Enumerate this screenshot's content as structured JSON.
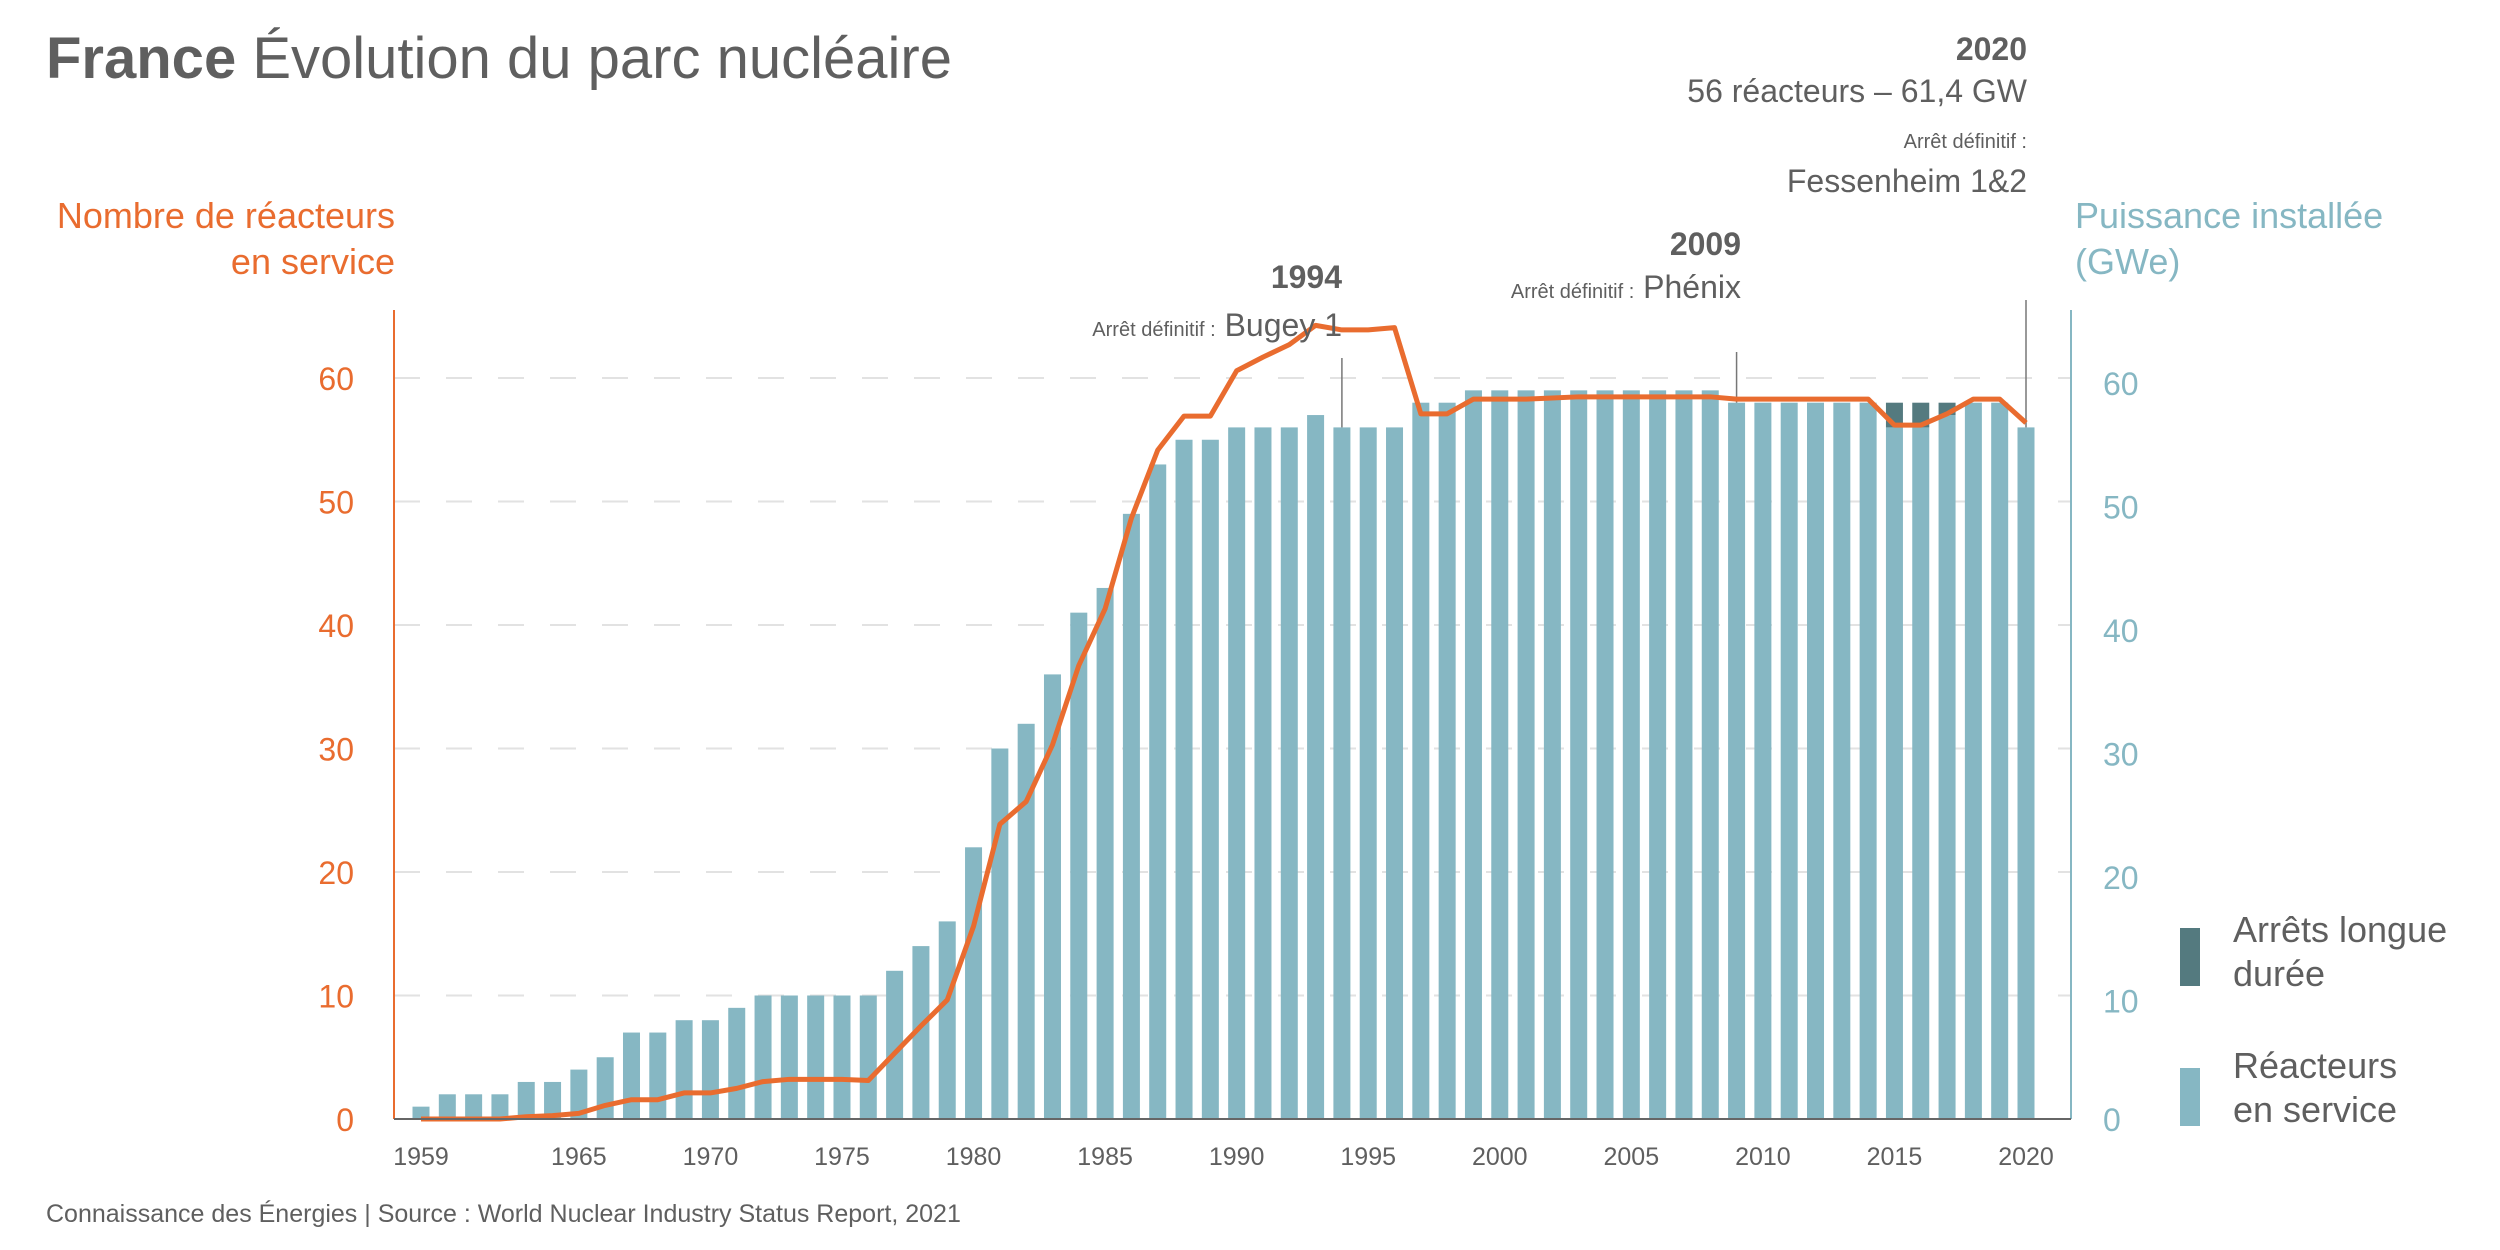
{
  "title": {
    "bold": "France",
    "rest": "Évolution du parc nucléaire"
  },
  "footer": "Connaissance des Énergies | Source : World Nuclear Industry Status Report, 2021",
  "colors": {
    "bars": "#86b7c3",
    "stopped": "#547a7f",
    "line": "#e96c2f",
    "left_axis": "#e96c2f",
    "right_axis": "#86b7c3",
    "text": "#5f5f5f"
  },
  "annotations": [
    {
      "year": "1994",
      "prefix": "Arrêt définitif :",
      "name": "Bugey 1"
    },
    {
      "year": "2009",
      "prefix": "Arrêt définitif :",
      "name": "Phénix"
    },
    {
      "year": "2020",
      "subtitle": "56 réacteurs – 61,4 GW",
      "prefix": "Arrêt définitif :",
      "name": "Fessenheim 1&2"
    }
  ],
  "legend": {
    "stopped": [
      "Arrêts longue",
      "durée"
    ],
    "bars": [
      "Réacteurs",
      "en service"
    ]
  },
  "chart_data": {
    "type": "bar",
    "title": "France Évolution du parc nucléaire",
    "ylabel_left": [
      "Nombre de réacteurs",
      "en service"
    ],
    "ylabel_right": [
      "Puissance installée",
      "(GWe)"
    ],
    "ylim_left": [
      0,
      65
    ],
    "ylim_right": [
      0,
      65
    ],
    "yticks_left": [
      0,
      10,
      20,
      30,
      40,
      50,
      60
    ],
    "yticks_right": [
      0,
      10,
      20,
      30,
      40,
      50,
      60
    ],
    "xticks": [
      1959,
      1965,
      1970,
      1975,
      1980,
      1985,
      1990,
      1995,
      2000,
      2005,
      2010,
      2015,
      2020
    ],
    "grid": "horizontal dashed",
    "legend_position": "bottom-right",
    "x": [
      1959,
      1960,
      1961,
      1962,
      1963,
      1964,
      1965,
      1966,
      1967,
      1968,
      1969,
      1970,
      1971,
      1972,
      1973,
      1974,
      1975,
      1976,
      1977,
      1978,
      1979,
      1980,
      1981,
      1982,
      1983,
      1984,
      1985,
      1986,
      1987,
      1988,
      1989,
      1990,
      1991,
      1992,
      1993,
      1994,
      1995,
      1996,
      1997,
      1998,
      1999,
      2000,
      2001,
      2002,
      2003,
      2004,
      2005,
      2006,
      2007,
      2008,
      2009,
      2010,
      2011,
      2012,
      2013,
      2014,
      2015,
      2016,
      2017,
      2018,
      2019,
      2020
    ],
    "series": [
      {
        "name": "Réacteurs en service",
        "type": "bar",
        "axis": "left",
        "values": [
          1,
          2,
          2,
          2,
          3,
          3,
          4,
          5,
          7,
          7,
          8,
          8,
          9,
          10,
          10,
          10,
          10,
          10,
          12,
          14,
          16,
          22,
          30,
          32,
          36,
          41,
          43,
          49,
          53,
          55,
          55,
          56,
          56,
          56,
          57,
          56,
          56,
          56,
          58,
          58,
          59,
          59,
          59,
          59,
          59,
          59,
          59,
          59,
          59,
          59,
          58,
          58,
          58,
          58,
          58,
          58,
          56,
          56,
          57,
          58,
          58,
          56
        ]
      },
      {
        "name": "Arrêts longue durée",
        "type": "bar-stacked",
        "axis": "left",
        "values": [
          0,
          0,
          0,
          0,
          0,
          0,
          0,
          0,
          0,
          0,
          0,
          0,
          0,
          0,
          0,
          0,
          0,
          0,
          0,
          0,
          0,
          0,
          0,
          0,
          0,
          0,
          0,
          0,
          0,
          0,
          0,
          0,
          0,
          0,
          0,
          0,
          0,
          0,
          0,
          0,
          0,
          0,
          0,
          0,
          0,
          0,
          0,
          0,
          0,
          0,
          0,
          0,
          0,
          0,
          0,
          0,
          2,
          2,
          1,
          0,
          0,
          0
        ]
      },
      {
        "name": "Puissance installée (GWe)",
        "type": "line",
        "axis": "right",
        "values": [
          0,
          0,
          0,
          0,
          0.2,
          0.3,
          0.5,
          1.2,
          1.7,
          1.7,
          2.3,
          2.3,
          2.7,
          3.3,
          3.5,
          3.5,
          3.5,
          3.4,
          5.8,
          8.2,
          10.5,
          17,
          26,
          28,
          33,
          40,
          45,
          53,
          59,
          62,
          62,
          66,
          67.2,
          68.3,
          70,
          69.6,
          69.6,
          69.8,
          62.2,
          62.2,
          63.5,
          63.5,
          63.5,
          63.6,
          63.7,
          63.7,
          63.7,
          63.7,
          63.7,
          63.7,
          63.5,
          63.5,
          63.5,
          63.5,
          63.5,
          63.5,
          61.2,
          61.2,
          62.2,
          63.5,
          63.5,
          61.4
        ]
      }
    ]
  }
}
